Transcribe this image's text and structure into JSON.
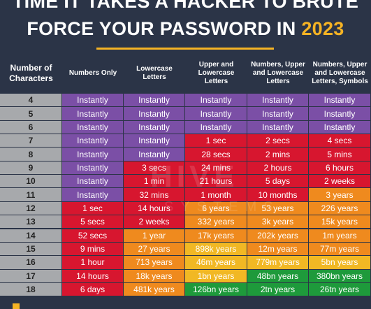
{
  "title_line1": "TIME IT TAKES A HACKER TO BRUTE",
  "title_line2": "FORCE YOUR PASSWORD IN",
  "title_year": "2023",
  "watermark": "HIVE",
  "watermark2": "SYSTEMS",
  "colors": {
    "purple": "#7b4fa6",
    "red": "#d7162f",
    "orange": "#ef8a1e",
    "yellow": "#f1b824",
    "green": "#1e9a3b",
    "num_bg": "#a7a9ac",
    "accent": "#f5b324"
  },
  "chart_data": {
    "type": "table",
    "columns": [
      "Number of Characters",
      "Numbers Only",
      "Lowercase Letters",
      "Upper and Lowercase Letters",
      "Numbers, Upper and Lowercase Letters",
      "Numbers, Upper and Lowercase Letters, Symbols"
    ],
    "rows": [
      {
        "n": "4",
        "cells": [
          [
            "Instantly",
            "purple"
          ],
          [
            "Instantly",
            "purple"
          ],
          [
            "Instantly",
            "purple"
          ],
          [
            "Instantly",
            "purple"
          ],
          [
            "Instantly",
            "purple"
          ]
        ]
      },
      {
        "n": "5",
        "cells": [
          [
            "Instantly",
            "purple"
          ],
          [
            "Instantly",
            "purple"
          ],
          [
            "Instantly",
            "purple"
          ],
          [
            "Instantly",
            "purple"
          ],
          [
            "Instantly",
            "purple"
          ]
        ]
      },
      {
        "n": "6",
        "cells": [
          [
            "Instantly",
            "purple"
          ],
          [
            "Instantly",
            "purple"
          ],
          [
            "Instantly",
            "purple"
          ],
          [
            "Instantly",
            "purple"
          ],
          [
            "Instantly",
            "purple"
          ]
        ]
      },
      {
        "n": "7",
        "cells": [
          [
            "Instantly",
            "purple"
          ],
          [
            "Instantly",
            "purple"
          ],
          [
            "1 sec",
            "red"
          ],
          [
            "2 secs",
            "red"
          ],
          [
            "4 secs",
            "red"
          ]
        ]
      },
      {
        "n": "8",
        "cells": [
          [
            "Instantly",
            "purple"
          ],
          [
            "Instantly",
            "purple"
          ],
          [
            "28 secs",
            "red"
          ],
          [
            "2 mins",
            "red"
          ],
          [
            "5 mins",
            "red"
          ]
        ]
      },
      {
        "n": "9",
        "cells": [
          [
            "Instantly",
            "purple"
          ],
          [
            "3 secs",
            "red"
          ],
          [
            "24 mins",
            "red"
          ],
          [
            "2 hours",
            "red"
          ],
          [
            "6 hours",
            "red"
          ]
        ]
      },
      {
        "n": "10",
        "cells": [
          [
            "Instantly",
            "purple"
          ],
          [
            "1 min",
            "red"
          ],
          [
            "21 hours",
            "red"
          ],
          [
            "5 days",
            "red"
          ],
          [
            "2 weeks",
            "red"
          ]
        ]
      },
      {
        "n": "11",
        "cells": [
          [
            "Instantly",
            "purple"
          ],
          [
            "32 mins",
            "red"
          ],
          [
            "1 month",
            "red"
          ],
          [
            "10 months",
            "red"
          ],
          [
            "3 years",
            "orange"
          ]
        ]
      },
      {
        "n": "12",
        "cells": [
          [
            "1 sec",
            "red"
          ],
          [
            "14 hours",
            "red"
          ],
          [
            "6 years",
            "orange"
          ],
          [
            "53 years",
            "orange"
          ],
          [
            "226 years",
            "orange"
          ]
        ]
      },
      {
        "n": "13",
        "cells": [
          [
            "5 secs",
            "red"
          ],
          [
            "2 weeks",
            "red"
          ],
          [
            "332 years",
            "orange"
          ],
          [
            "3k years",
            "orange"
          ],
          [
            "15k years",
            "orange"
          ]
        ]
      },
      {
        "n": "14",
        "cells": [
          [
            "52 secs",
            "red"
          ],
          [
            "1 year",
            "orange"
          ],
          [
            "17k years",
            "orange"
          ],
          [
            "202k years",
            "orange"
          ],
          [
            "1m years",
            "orange"
          ]
        ]
      },
      {
        "n": "15",
        "cells": [
          [
            "9 mins",
            "red"
          ],
          [
            "27 years",
            "orange"
          ],
          [
            "898k years",
            "yellow"
          ],
          [
            "12m years",
            "orange"
          ],
          [
            "77m years",
            "orange"
          ]
        ]
      },
      {
        "n": "16",
        "cells": [
          [
            "1 hour",
            "red"
          ],
          [
            "713 years",
            "orange"
          ],
          [
            "46m years",
            "yellow"
          ],
          [
            "779m years",
            "yellow"
          ],
          [
            "5bn years",
            "yellow"
          ]
        ]
      },
      {
        "n": "17",
        "cells": [
          [
            "14 hours",
            "red"
          ],
          [
            "18k years",
            "orange"
          ],
          [
            "1bn years",
            "yellow"
          ],
          [
            "48bn years",
            "green"
          ],
          [
            "380bn years",
            "green"
          ]
        ]
      },
      {
        "n": "18",
        "cells": [
          [
            "6 days",
            "red"
          ],
          [
            "481k years",
            "orange"
          ],
          [
            "126bn years",
            "green"
          ],
          [
            "2tn years",
            "green"
          ],
          [
            "26tn years",
            "green"
          ]
        ]
      }
    ]
  }
}
